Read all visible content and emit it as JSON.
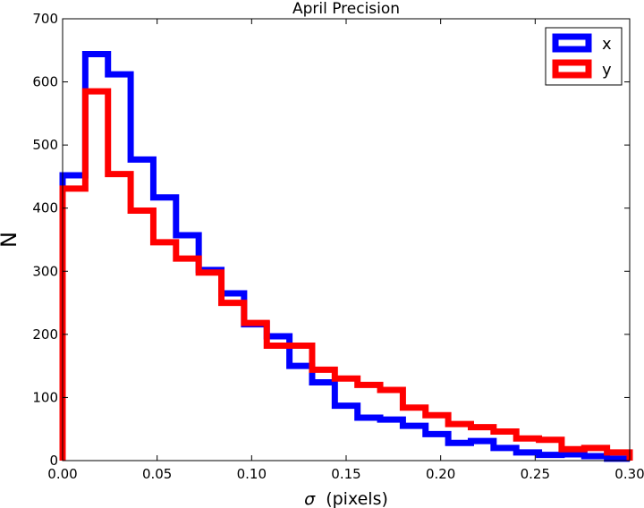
{
  "chart_data": {
    "type": "step-histogram",
    "title": "April Precision",
    "xlabel_symbol": "σ",
    "xlabel_text": "(pixels)",
    "ylabel": "N",
    "xlim": [
      0.0,
      0.3
    ],
    "ylim": [
      0,
      700
    ],
    "xticks": [
      0.0,
      0.05,
      0.1,
      0.15,
      0.2,
      0.25,
      0.3
    ],
    "xtick_labels": [
      "0.00",
      "0.05",
      "0.10",
      "0.15",
      "0.20",
      "0.25",
      "0.30"
    ],
    "yticks": [
      0,
      100,
      200,
      300,
      400,
      500,
      600,
      700
    ],
    "ytick_labels": [
      "0",
      "100",
      "200",
      "300",
      "400",
      "500",
      "600",
      "700"
    ],
    "bin_edges": [
      0.0,
      0.012,
      0.024,
      0.036,
      0.048,
      0.06,
      0.072,
      0.084,
      0.096,
      0.108,
      0.12,
      0.132,
      0.144,
      0.156,
      0.168,
      0.18,
      0.192,
      0.204,
      0.216,
      0.228,
      0.24,
      0.252,
      0.264,
      0.276,
      0.288,
      0.3
    ],
    "series": [
      {
        "name": "x",
        "color": "#0000ff",
        "values": [
          452,
          644,
          612,
          477,
          417,
          357,
          302,
          265,
          216,
          197,
          150,
          124,
          87,
          68,
          65,
          55,
          42,
          28,
          31,
          20,
          13,
          9,
          10,
          7,
          3
        ]
      },
      {
        "name": "y",
        "color": "#ff0000",
        "values": [
          431,
          585,
          454,
          396,
          346,
          320,
          298,
          250,
          218,
          182,
          182,
          144,
          130,
          120,
          112,
          84,
          72,
          58,
          53,
          46,
          35,
          33,
          18,
          20,
          13
        ]
      }
    ],
    "legend_position": "top-right",
    "grid": false
  }
}
